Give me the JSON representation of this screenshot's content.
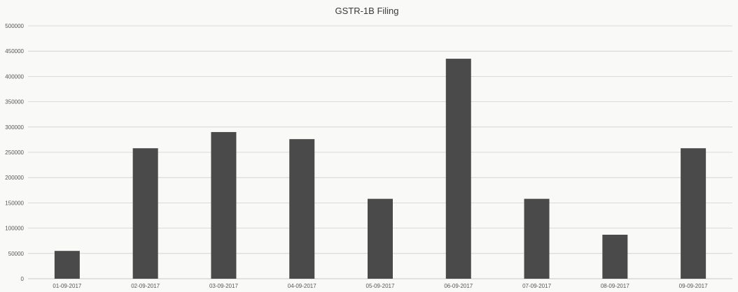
{
  "chart_data": {
    "type": "bar",
    "title": "GSTR-1B Filing",
    "xlabel": "",
    "ylabel": "",
    "categories": [
      "01-09-2017",
      "02-09-2017",
      "03-09-2017",
      "04-09-2017",
      "05-09-2017",
      "06-09-2017",
      "07-09-2017",
      "08-09-2017",
      "09-09-2017"
    ],
    "values": [
      55000,
      258000,
      290000,
      276000,
      158000,
      435000,
      158000,
      87000,
      258000
    ],
    "ylim": [
      0,
      500000
    ],
    "yticks": [
      "0",
      "50000",
      "100000",
      "150000",
      "200000",
      "250000",
      "300000",
      "350000",
      "400000",
      "450000",
      "500000"
    ],
    "grid": true,
    "legend": "none",
    "bar_color": "#4a4a4a"
  }
}
